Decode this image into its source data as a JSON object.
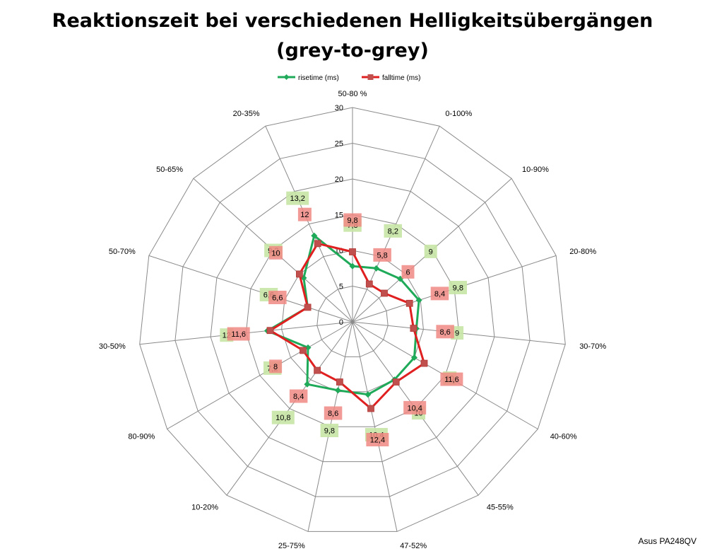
{
  "chart_data": {
    "type": "radar",
    "title_line1": "Reaktionszeit bei verschiedenen Helligkeitsübergängen",
    "title_line2": "(grey-to-grey)",
    "categories": [
      "50-80 %",
      "0-100%",
      "10-90%",
      "20-80%",
      "30-70%",
      "40-60%",
      "45-55%",
      "47-52%",
      "25-75%",
      "10-20%",
      "80-90%",
      "30-50%",
      "50-70%",
      "50-65%",
      "20-35%"
    ],
    "rlim": [
      0,
      30
    ],
    "ticks": [
      "0",
      "5",
      "10",
      "15",
      "20",
      "25",
      "30"
    ],
    "grid": true,
    "legend_position": "top",
    "series": [
      {
        "name": "risetime (ms)",
        "color": "#1faa59",
        "marker": "diamond",
        "values": [
          7.8,
          8.2,
          9,
          9.8,
          9,
          10,
          10,
          10.4,
          9.8,
          10.8,
          7.2,
          12,
          6.6,
          9.2,
          13.2
        ],
        "labels": [
          "7,8",
          "8,2",
          "9",
          "9,8",
          "9",
          "10",
          "10",
          "10,4",
          "9,8",
          "10,8",
          "7,2",
          "12",
          "6,6",
          "9,2",
          "13,2"
        ],
        "label_bg": "#c8e6a6"
      },
      {
        "name": "falltime (ms)",
        "color": "#e02020",
        "marker": "square",
        "values": [
          9.8,
          5.8,
          6,
          8.4,
          8.6,
          11.6,
          10.4,
          12.4,
          8.6,
          8.4,
          8,
          11.6,
          6.6,
          10,
          12
        ],
        "labels": [
          "9,8",
          "5,8",
          "6",
          "8,4",
          "8,6",
          "11,6",
          "10,4",
          "12,4",
          "8,6",
          "8,4",
          "8",
          "11,6",
          "6,6",
          "10",
          "12"
        ],
        "label_bg": "#f08a84"
      }
    ]
  },
  "watermark": "Asus PA248QV"
}
